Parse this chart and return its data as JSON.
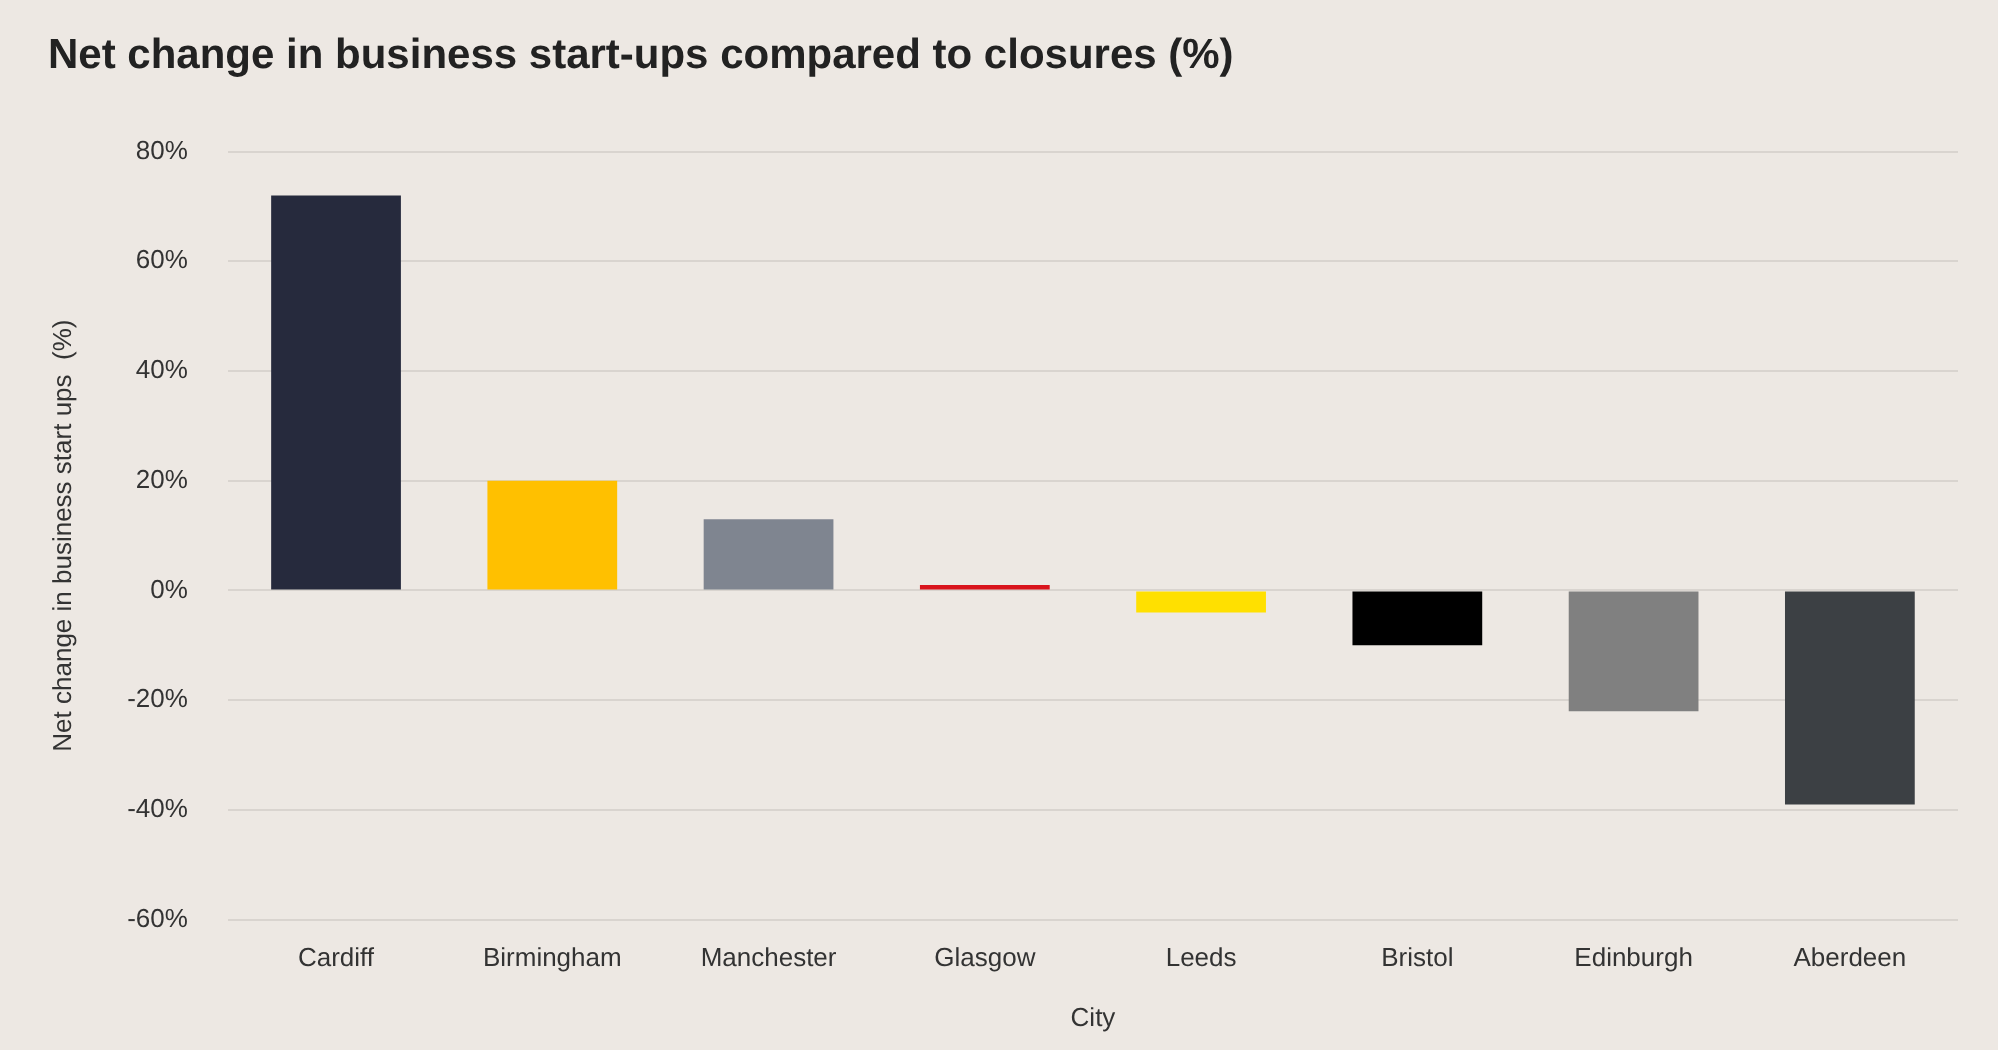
{
  "chart_data": {
    "type": "bar",
    "title": "Net change in business start-ups compared to closures (%)",
    "xlabel": "City",
    "ylabel": "Net change in business start ups  (%)",
    "categories": [
      "Cardiff",
      "Birmingham",
      "Manchester",
      "Glasgow",
      "Leeds",
      "Bristol",
      "Edinburgh",
      "Aberdeen"
    ],
    "values": [
      72,
      20,
      13,
      1,
      -4,
      -10,
      -22,
      -39
    ],
    "colors": [
      "#262a3d",
      "#ffc000",
      "#7f8590",
      "#d9141c",
      "#ffe000",
      "#000000",
      "#808080",
      "#3c4044"
    ],
    "ylim": [
      -60,
      80
    ],
    "yticks": [
      {
        "value": -60,
        "label": "-60%"
      },
      {
        "value": -40,
        "label": "-40%"
      },
      {
        "value": -20,
        "label": "-20%"
      },
      {
        "value": 0,
        "label": "0%"
      },
      {
        "value": 20,
        "label": "20%"
      },
      {
        "value": 40,
        "label": "40%"
      },
      {
        "value": 60,
        "label": "60%"
      },
      {
        "value": 80,
        "label": "80%"
      }
    ],
    "grid": "y"
  }
}
